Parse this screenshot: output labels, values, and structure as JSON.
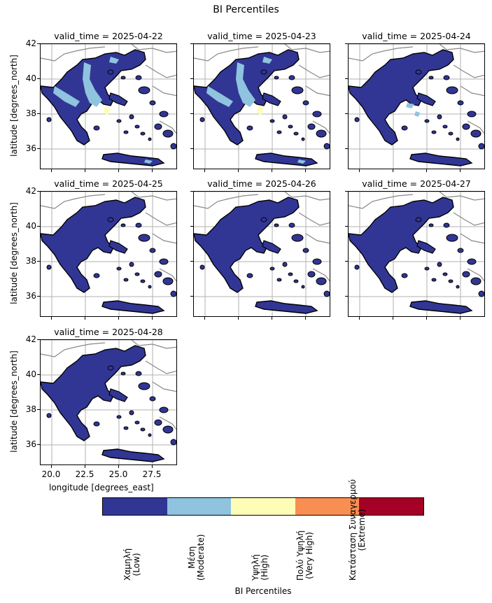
{
  "figure": {
    "title": "BI Percentiles"
  },
  "panels": [
    {
      "label": "valid_time = 2025-04-22"
    },
    {
      "label": "valid_time = 2025-04-23"
    },
    {
      "label": "valid_time = 2025-04-24"
    },
    {
      "label": "valid_time = 2025-04-25"
    },
    {
      "label": "valid_time = 2025-04-26"
    },
    {
      "label": "valid_time = 2025-04-27"
    },
    {
      "label": "valid_time = 2025-04-28"
    }
  ],
  "axes": {
    "ylabel": "latitude [degrees_north]",
    "xlabel": "longitude [degrees_east]",
    "yticks": [
      "42",
      "40",
      "38",
      "36"
    ],
    "xticks": [
      "20.0",
      "22.5",
      "25.0",
      "27.5"
    ]
  },
  "colorbar": {
    "title": "BI Percentiles",
    "classes": [
      {
        "label_line1": "Χαμηλή",
        "label_line2": "(Low)",
        "color": "#313695"
      },
      {
        "label_line1": "Μέση",
        "label_line2": "(Moderate)",
        "color": "#8fc3de"
      },
      {
        "label_line1": "Υψηλή",
        "label_line2": "(High)",
        "color": "#fefdb8"
      },
      {
        "label_line1": "Πολύ Υψηλή",
        "label_line2": "(Very High)",
        "color": "#f98e52"
      },
      {
        "label_line1": "Κατάσταση Συναγερμού",
        "label_line2": "(Extreme)",
        "color": "#a50026"
      }
    ]
  },
  "map_style": {
    "land_fill": "#313695",
    "coast": "#000000",
    "borders": "#888888",
    "grid": "#b0b0b0"
  }
}
